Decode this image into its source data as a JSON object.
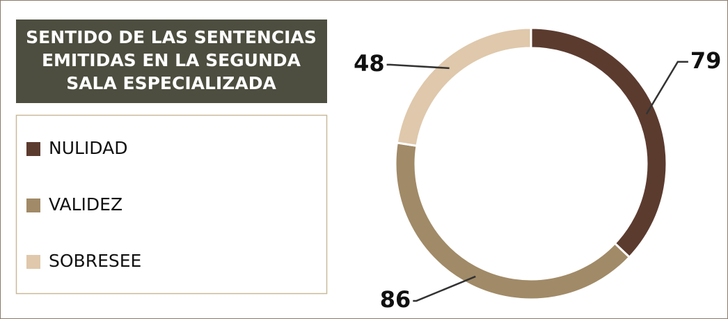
{
  "chart_data": {
    "type": "donut",
    "title": [
      "SENTIDO DE LAS SENTENCIAS",
      "EMITIDAS EN LA SEGUNDA",
      "SALA ESPECIALIZADA"
    ],
    "categories": [
      "NULIDAD",
      "VALIDEZ",
      "SOBRESEE"
    ],
    "values": [
      79,
      86,
      48
    ],
    "colors": [
      "#5c3b2f",
      "#a18a67",
      "#dfc8ab"
    ],
    "legend": "left"
  }
}
